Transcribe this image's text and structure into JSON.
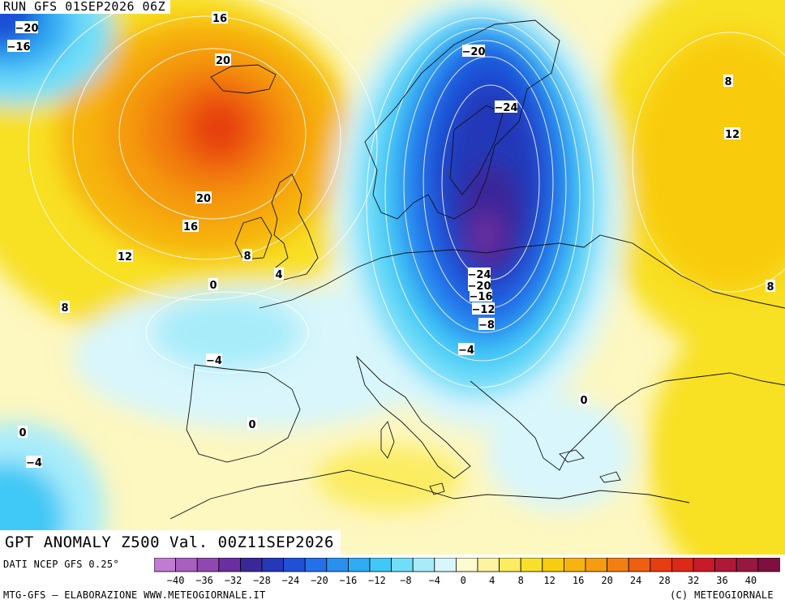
{
  "header": {
    "run_label": "RUN GFS 01SEP2026 06Z"
  },
  "title": {
    "text": "GPT ANOMALY Z500 Val. 00Z11SEP2026"
  },
  "credits": {
    "data_source": "DATI NCEP GFS 0.25°",
    "producer": "MTG-GFS – ELABORAZIONE WWW.METEOGIORNALE.IT",
    "copyright": "(C) METEOGIORNALE"
  },
  "colorscale": {
    "tick_labels": [
      "−40",
      "−36",
      "−32",
      "−28",
      "−24",
      "−20",
      "−16",
      "−12",
      "−8",
      "−4",
      "0",
      "4",
      "8",
      "12",
      "16",
      "20",
      "24",
      "28",
      "32",
      "36",
      "40"
    ],
    "colors": [
      "#c07cd0",
      "#a860c0",
      "#9048b0",
      "#6a2ea0",
      "#3a2898",
      "#2438b8",
      "#1f50d6",
      "#2470ea",
      "#2a90f0",
      "#30acf4",
      "#40c8f6",
      "#70def8",
      "#a8ecfa",
      "#d8f6fc",
      "#fdfbd0",
      "#fdf3a0",
      "#fbec60",
      "#f8e02a",
      "#f8cc10",
      "#f6b410",
      "#f59c10",
      "#f28010",
      "#ee6010",
      "#e63e10",
      "#dc2a18",
      "#c81a28",
      "#b01838",
      "#961840",
      "#7e1040"
    ]
  },
  "contour_labels": [
    "−20",
    "−16",
    "16",
    "20",
    "20",
    "16",
    "12",
    "8",
    "8",
    "0",
    "4",
    "−4",
    "0",
    "−20",
    "−24",
    "−24",
    "−20",
    "−16",
    "−12",
    "−8",
    "−4",
    "0",
    "8",
    "12",
    "8",
    "0",
    "−4"
  ]
}
